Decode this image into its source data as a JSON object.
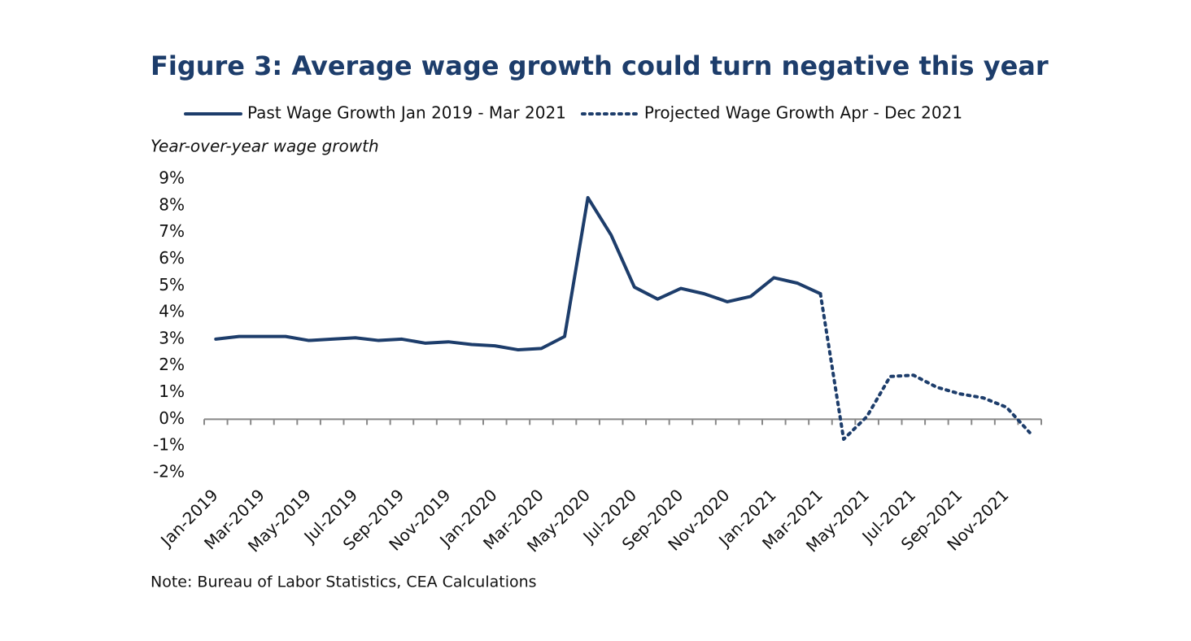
{
  "chart_data": {
    "type": "line",
    "title": "Figure 3: Average wage growth could turn negative this year",
    "y_axis_label": "Year-over-year wage growth",
    "note": "Note: Bureau of Labor Statistics, CEA Calculations",
    "categories": [
      "Jan-2019",
      null,
      "Mar-2019",
      null,
      "May-2019",
      null,
      "Jul-2019",
      null,
      "Sep-2019",
      null,
      "Nov-2019",
      null,
      "Jan-2020",
      null,
      "Mar-2020",
      null,
      "May-2020",
      null,
      "Jul-2020",
      null,
      "Sep-2020",
      null,
      "Nov-2020",
      null,
      "Jan-2021",
      null,
      "Mar-2021",
      null,
      "May-2021",
      null,
      "Jul-2021",
      null,
      "Sep-2021",
      null,
      "Nov-2021",
      null
    ],
    "series": [
      {
        "name": "Past Wage Growth Jan 2019 - Mar 2021",
        "color": "#1d3d6b",
        "dash": "solid",
        "values": [
          3.0,
          3.1,
          3.1,
          3.1,
          2.95,
          3.0,
          3.05,
          2.95,
          3.0,
          2.85,
          2.9,
          2.8,
          2.75,
          2.6,
          2.65,
          3.1,
          8.3,
          6.9,
          4.95,
          4.5,
          4.9,
          4.7,
          4.4,
          4.6,
          5.3,
          5.1,
          4.7,
          null,
          null,
          null,
          null,
          null,
          null,
          null,
          null,
          null
        ]
      },
      {
        "name": "Projected Wage Growth Apr - Dec 2021",
        "color": "#1d3d6b",
        "dash": "dotted",
        "values": [
          null,
          null,
          null,
          null,
          null,
          null,
          null,
          null,
          null,
          null,
          null,
          null,
          null,
          null,
          null,
          null,
          null,
          null,
          null,
          null,
          null,
          null,
          null,
          null,
          null,
          null,
          4.7,
          -0.75,
          0.1,
          1.6,
          1.65,
          1.2,
          0.95,
          0.8,
          0.45,
          -0.5
        ]
      }
    ],
    "ylim": [
      -2,
      9
    ],
    "yticks": [
      {
        "value": 9,
        "label": "9%"
      },
      {
        "value": 8,
        "label": "8%"
      },
      {
        "value": 7,
        "label": "7%"
      },
      {
        "value": 6,
        "label": "6%"
      },
      {
        "value": 5,
        "label": "5%"
      },
      {
        "value": 4,
        "label": "4%"
      },
      {
        "value": 3,
        "label": "3%"
      },
      {
        "value": 2,
        "label": "2%"
      },
      {
        "value": 1,
        "label": "1%"
      },
      {
        "value": 0,
        "label": "0%"
      },
      {
        "value": -1,
        "label": "-1%"
      },
      {
        "value": -2,
        "label": "-2%"
      }
    ],
    "grid": false
  }
}
